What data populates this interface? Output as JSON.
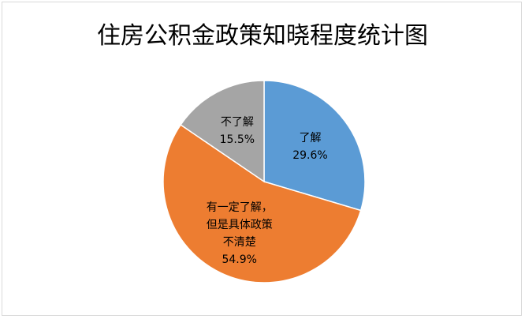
{
  "chart_data": {
    "type": "pie",
    "title": "住房公积金政策知晓程度统计图",
    "categories": [
      "了解",
      "有一定了解，但是具体政策不清楚",
      "不了解"
    ],
    "values": [
      29.6,
      54.9,
      15.5
    ],
    "value_labels": [
      "29.6%",
      "54.9%",
      "15.5%"
    ],
    "colors": [
      "#5b9bd5",
      "#ed7d31",
      "#a5a5a5"
    ]
  }
}
